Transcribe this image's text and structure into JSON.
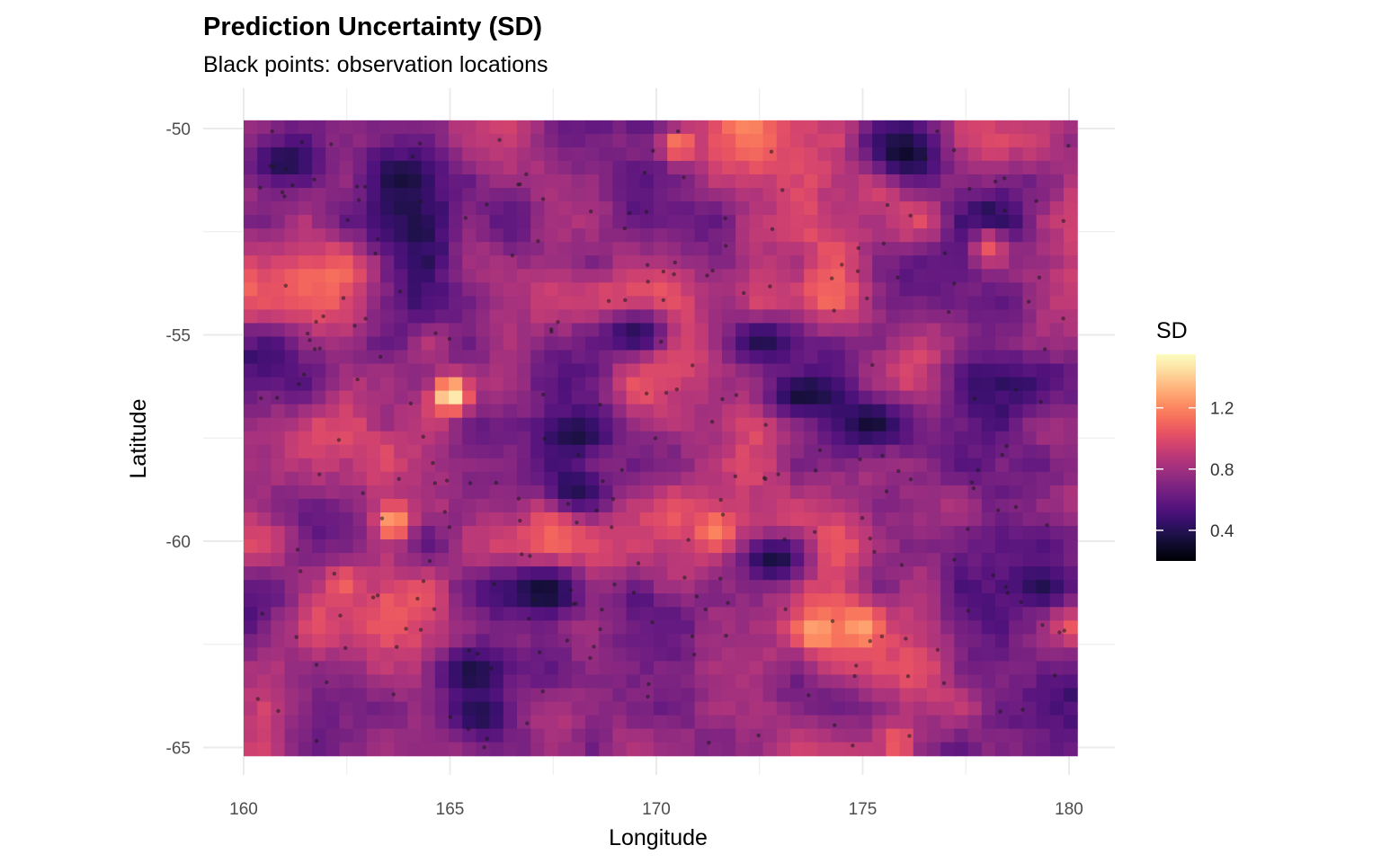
{
  "chart_data": {
    "type": "heatmap",
    "title": "Prediction Uncertainty (SD)",
    "subtitle": "Black points: observation locations",
    "xlabel": "Longitude",
    "ylabel": "Latitude",
    "xlim": [
      160,
      180.2
    ],
    "ylim": [
      -65.2,
      -49.8
    ],
    "x_ticks": [
      "160",
      "165",
      "170",
      "175",
      "180"
    ],
    "x_tick_values": [
      160,
      165,
      170,
      175,
      180
    ],
    "y_ticks": [
      "-50",
      "-55",
      "-60",
      "-65"
    ],
    "y_tick_values": [
      -50,
      -55,
      -60,
      -65
    ],
    "grid": true,
    "grid_resolution_deg": 0.33,
    "legend": {
      "title": "SD",
      "position": "right",
      "range": [
        0.2,
        1.55
      ],
      "ticks": [
        "0.4",
        "0.8",
        "1.2"
      ],
      "tick_values": [
        0.4,
        0.8,
        1.2
      ],
      "palette": "magma"
    },
    "colors": {
      "low": "#000004",
      "mid_low": "#51127c",
      "mid": "#b73779",
      "mid_high": "#fc8961",
      "high": "#fcfdbf",
      "points": "#1a1a1a"
    },
    "hotspots": [
      {
        "lon": 165.0,
        "lat": -56.5,
        "sd": 1.55
      },
      {
        "lon": 163.6,
        "lat": -59.6,
        "sd": 1.3
      },
      {
        "lon": 171.4,
        "lat": -59.8,
        "sd": 1.2
      },
      {
        "lon": 173.8,
        "lat": -62.3,
        "sd": 1.3
      },
      {
        "lon": 174.9,
        "lat": -62.2,
        "sd": 1.3
      },
      {
        "lon": 170.5,
        "lat": -50.4,
        "sd": 1.2
      },
      {
        "lon": 175.8,
        "lat": -65.0,
        "sd": 1.1
      },
      {
        "lon": 178.0,
        "lat": -52.9,
        "sd": 1.05
      },
      {
        "lon": 162.4,
        "lat": -61.1,
        "sd": 1.1
      }
    ],
    "low_regions": [
      {
        "lon": 176.0,
        "lat": -50.6,
        "sd": 0.25
      },
      {
        "lon": 161.0,
        "lat": -50.8,
        "sd": 0.3
      },
      {
        "lon": 164.0,
        "lat": -51.2,
        "sd": 0.3
      },
      {
        "lon": 173.5,
        "lat": -56.5,
        "sd": 0.25
      },
      {
        "lon": 175.2,
        "lat": -57.2,
        "sd": 0.25
      },
      {
        "lon": 168.0,
        "lat": -57.5,
        "sd": 0.3
      },
      {
        "lon": 168.0,
        "lat": -58.8,
        "sd": 0.3
      },
      {
        "lon": 167.3,
        "lat": -61.3,
        "sd": 0.25
      },
      {
        "lon": 165.5,
        "lat": -63.3,
        "sd": 0.3
      },
      {
        "lon": 172.8,
        "lat": -60.5,
        "sd": 0.25
      },
      {
        "lon": 179.3,
        "lat": -61.2,
        "sd": 0.3
      },
      {
        "lon": 165.7,
        "lat": -64.3,
        "sd": 0.3
      },
      {
        "lon": 169.5,
        "lat": -55.0,
        "sd": 0.3
      },
      {
        "lon": 172.5,
        "lat": -55.2,
        "sd": 0.3
      }
    ]
  }
}
